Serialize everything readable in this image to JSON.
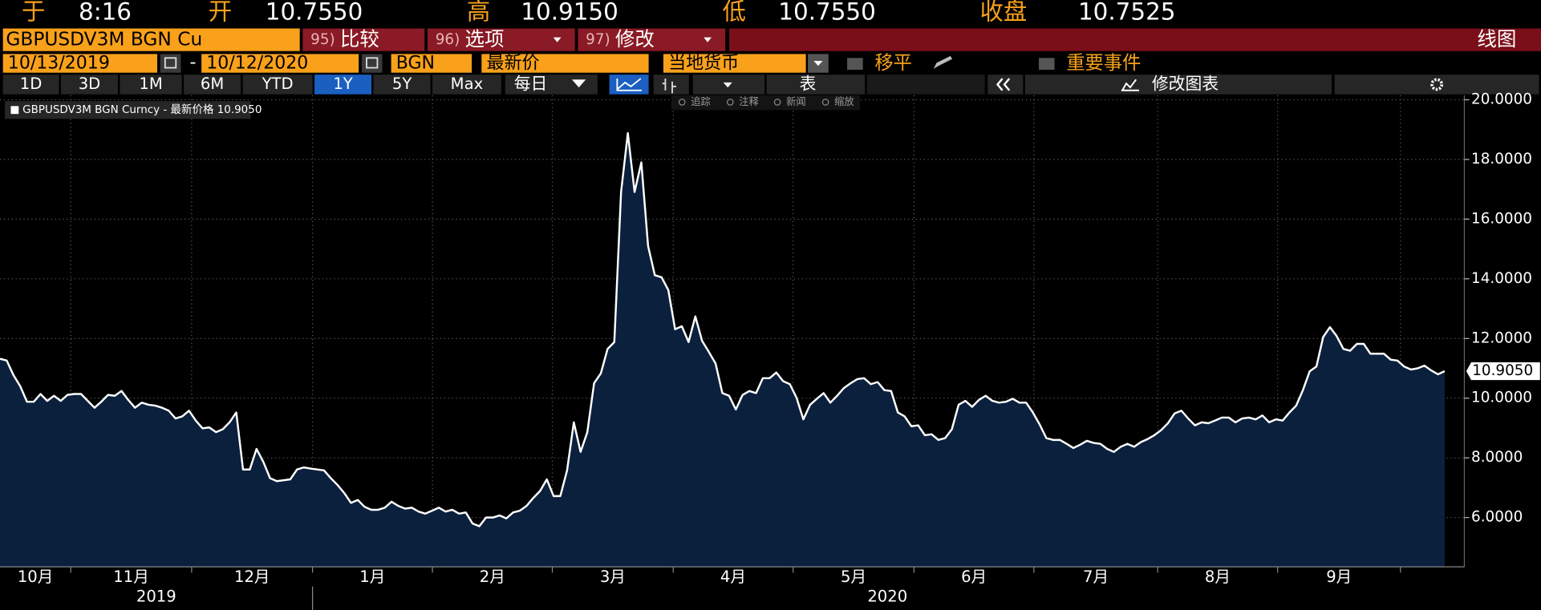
{
  "header": {
    "time_label": "于",
    "time": "8:16",
    "open_label": "开",
    "open": "10.7550",
    "high_label": "高",
    "high": "10.9150",
    "low_label": "低",
    "low": "10.7550",
    "close_label": "收盘",
    "close": "10.7525"
  },
  "toolbar": {
    "ticker": "GBPUSDV3M BGN Cu",
    "compare": {
      "num": "95)",
      "label": "比较"
    },
    "options": {
      "num": "96)",
      "label": "选项"
    },
    "modify": {
      "num": "97)",
      "label": "修改"
    },
    "chart_type": "线图",
    "start_date": "10/13/2019",
    "dash": "-",
    "end_date": "10/12/2020",
    "source": "BGN",
    "field": "最新价",
    "currency": "当地货币",
    "moving_avg": "移平",
    "events": "重要事件",
    "periods": [
      "1D",
      "3D",
      "1M",
      "6M",
      "YTD",
      "1Y",
      "5Y",
      "Max"
    ],
    "frequency": "每日",
    "table": "表",
    "edit_chart": "修改图表",
    "tools": [
      "追踪",
      "注释",
      "新闻",
      "缩放"
    ]
  },
  "chart_data": {
    "type": "area",
    "series": [
      {
        "name": "GBPUSDV3M BGN Curncy - 最新价格 10.9050",
        "color": "#ffffff",
        "fill": "#0b203d",
        "values": [
          11.32,
          11.26,
          10.77,
          10.4,
          9.88,
          9.88,
          10.14,
          9.91,
          10.08,
          9.91,
          10.11,
          10.14,
          10.14,
          9.91,
          9.68,
          9.88,
          10.11,
          10.08,
          10.24,
          9.94,
          9.68,
          9.85,
          9.78,
          9.75,
          9.68,
          9.58,
          9.32,
          9.39,
          9.58,
          9.25,
          8.99,
          9.02,
          8.86,
          8.96,
          9.19,
          9.52,
          7.61,
          7.61,
          8.3,
          7.87,
          7.32,
          7.22,
          7.25,
          7.28,
          7.61,
          7.68,
          7.64,
          7.61,
          7.58,
          7.32,
          7.09,
          6.82,
          6.49,
          6.59,
          6.36,
          6.26,
          6.26,
          6.33,
          6.53,
          6.39,
          6.3,
          6.33,
          6.2,
          6.13,
          6.23,
          6.33,
          6.2,
          6.26,
          6.13,
          6.17,
          5.8,
          5.71,
          6.0,
          6.0,
          6.07,
          5.97,
          6.17,
          6.23,
          6.39,
          6.66,
          6.89,
          7.28,
          6.72,
          6.72,
          7.58,
          9.19,
          8.2,
          8.86,
          10.5,
          10.83,
          11.65,
          11.88,
          16.91,
          18.88,
          16.91,
          17.9,
          15.1,
          14.12,
          14.05,
          13.62,
          12.31,
          12.41,
          11.88,
          12.74,
          11.92,
          11.55,
          11.16,
          10.17,
          10.08,
          9.62,
          10.11,
          10.24,
          10.17,
          10.67,
          10.67,
          10.86,
          10.57,
          10.47,
          10.01,
          9.29,
          9.78,
          9.98,
          10.17,
          9.85,
          10.08,
          10.34,
          10.5,
          10.64,
          10.67,
          10.47,
          10.54,
          10.27,
          10.24,
          9.52,
          9.39,
          9.06,
          9.09,
          8.76,
          8.79,
          8.6,
          8.66,
          8.96,
          9.78,
          9.91,
          9.71,
          9.94,
          10.08,
          9.91,
          9.85,
          9.88,
          9.98,
          9.85,
          9.85,
          9.52,
          9.12,
          8.66,
          8.6,
          8.6,
          8.47,
          8.33,
          8.44,
          8.57,
          8.5,
          8.47,
          8.3,
          8.2,
          8.37,
          8.47,
          8.37,
          8.53,
          8.63,
          8.76,
          8.93,
          9.16,
          9.49,
          9.58,
          9.32,
          9.09,
          9.19,
          9.16,
          9.25,
          9.35,
          9.35,
          9.19,
          9.32,
          9.35,
          9.29,
          9.42,
          9.19,
          9.29,
          9.25,
          9.52,
          9.75,
          10.27,
          10.9,
          11.06,
          12.05,
          12.38,
          12.08,
          11.65,
          11.59,
          11.82,
          11.82,
          11.49,
          11.49,
          11.49,
          11.29,
          11.26,
          11.06,
          10.96,
          11.0,
          11.09,
          10.93,
          10.8,
          10.905
        ]
      }
    ],
    "last_value": {
      "value": 10.905,
      "label": "10.9050"
    },
    "ylim": [
      4.35,
      20.15
    ],
    "yticks": [
      {
        "value": 6,
        "label": "6.0000"
      },
      {
        "value": 8,
        "label": "8.0000"
      },
      {
        "value": 10,
        "label": "10.0000"
      },
      {
        "value": 12,
        "label": "12.0000"
      },
      {
        "value": 14,
        "label": "14.0000"
      },
      {
        "value": 16,
        "label": "16.0000"
      },
      {
        "value": 18,
        "label": "18.0000"
      },
      {
        "value": 20,
        "label": "20.0000"
      }
    ],
    "x_labels": [
      "10月",
      "11月",
      "12月",
      "1月",
      "2月",
      "3月",
      "4月",
      "5月",
      "6月",
      "7月",
      "8月",
      "9月"
    ],
    "x_group_labels": [
      "2019",
      "2020"
    ],
    "grid": true
  }
}
